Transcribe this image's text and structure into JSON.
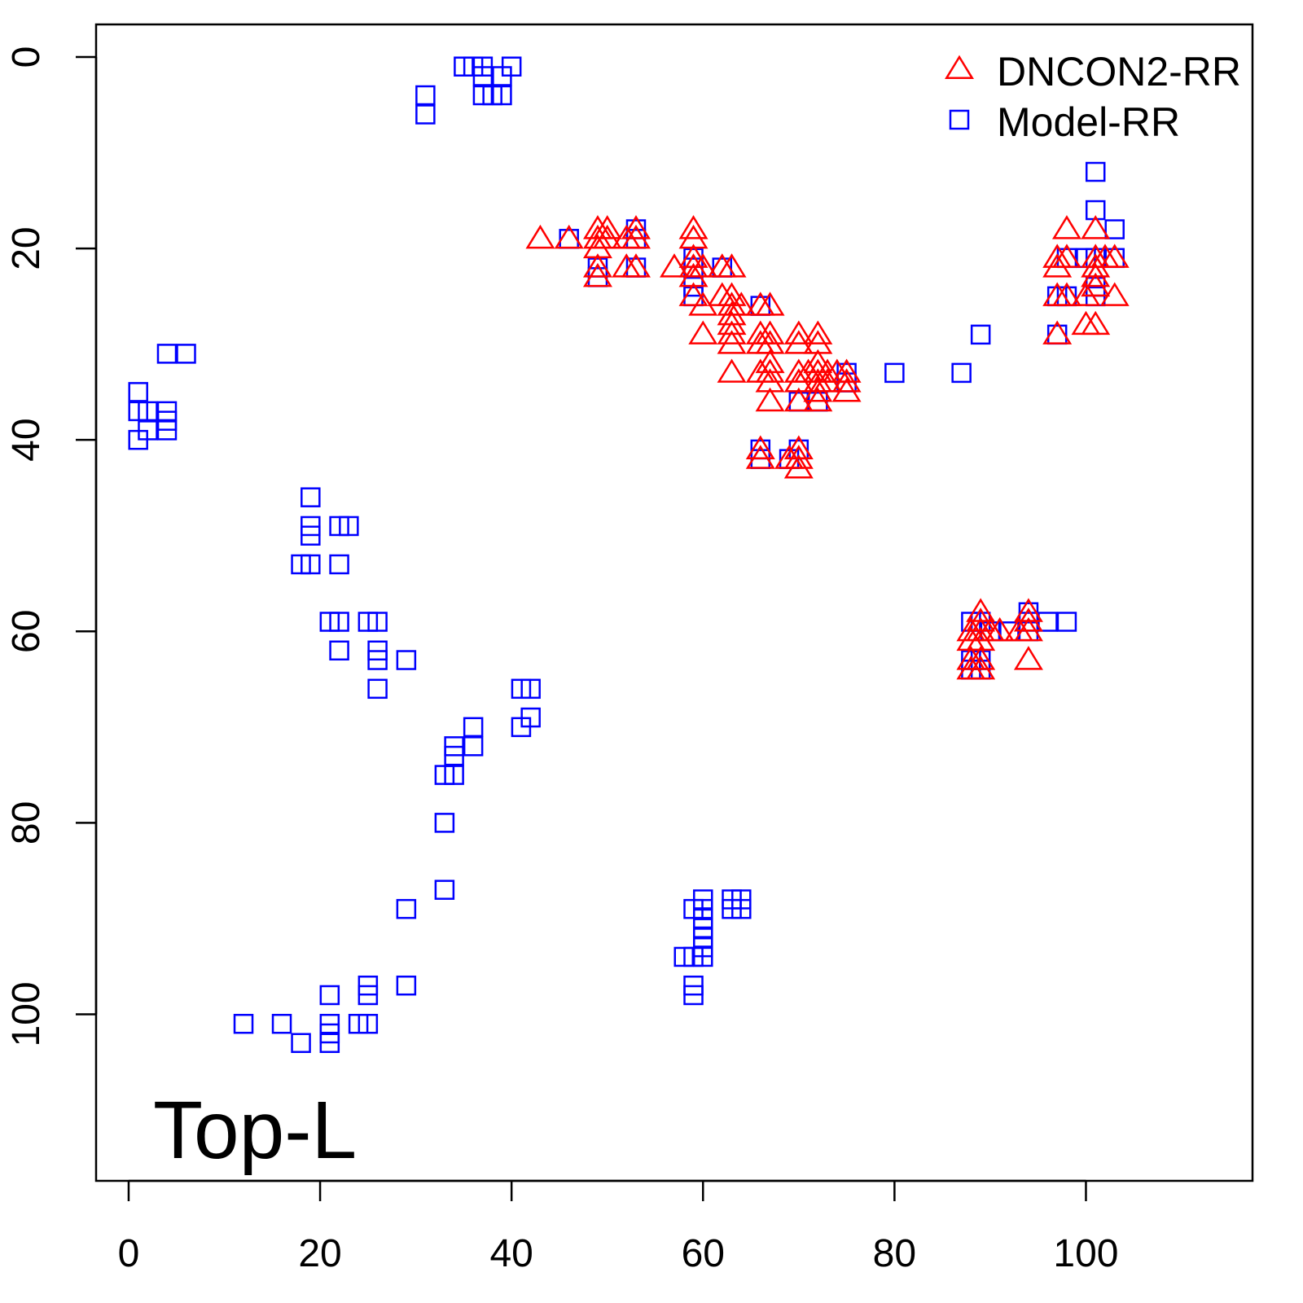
{
  "chart_data": {
    "type": "scatter",
    "title": "",
    "xlabel": "",
    "ylabel": "",
    "xlim": [
      -3.4,
      117.4
    ],
    "ylim": [
      -3.4,
      117.4
    ],
    "y_inverted": true,
    "grid": false,
    "x_ticks": [
      0,
      20,
      40,
      60,
      80,
      100
    ],
    "y_ticks": [
      0,
      20,
      40,
      60,
      80,
      100
    ],
    "annotation": "Top-L",
    "legend_position": "top-right",
    "series": [
      {
        "name": "DNCON2-RR",
        "marker": "triangle",
        "color": "#ff0000",
        "points": [
          [
            43,
            19
          ],
          [
            46,
            19
          ],
          [
            49,
            18
          ],
          [
            49,
            19
          ],
          [
            49,
            20
          ],
          [
            50,
            18
          ],
          [
            49,
            22
          ],
          [
            49,
            23
          ],
          [
            50,
            19
          ],
          [
            52,
            19
          ],
          [
            53,
            18
          ],
          [
            53,
            19
          ],
          [
            52,
            22
          ],
          [
            53,
            22
          ],
          [
            57,
            22
          ],
          [
            59,
            18
          ],
          [
            59,
            19
          ],
          [
            59,
            21
          ],
          [
            59,
            22
          ],
          [
            59,
            23
          ],
          [
            60,
            22
          ],
          [
            59,
            25
          ],
          [
            60,
            26
          ],
          [
            60,
            29
          ],
          [
            62,
            22
          ],
          [
            63,
            22
          ],
          [
            62,
            25
          ],
          [
            63,
            25
          ],
          [
            63,
            26
          ],
          [
            63,
            27
          ],
          [
            63,
            28
          ],
          [
            63,
            29
          ],
          [
            63,
            30
          ],
          [
            63,
            33
          ],
          [
            64,
            26
          ],
          [
            66,
            26
          ],
          [
            67,
            26
          ],
          [
            66,
            29
          ],
          [
            67,
            29
          ],
          [
            66,
            30
          ],
          [
            67,
            30
          ],
          [
            66,
            33
          ],
          [
            67,
            32
          ],
          [
            67,
            33
          ],
          [
            67,
            34
          ],
          [
            67,
            36
          ],
          [
            66,
            41
          ],
          [
            66,
            42
          ],
          [
            70,
            29
          ],
          [
            70,
            30
          ],
          [
            72,
            29
          ],
          [
            72,
            30
          ],
          [
            70,
            33
          ],
          [
            70,
            34
          ],
          [
            71,
            33
          ],
          [
            72,
            32
          ],
          [
            72,
            33
          ],
          [
            72,
            34
          ],
          [
            72,
            35
          ],
          [
            72,
            36
          ],
          [
            73,
            33
          ],
          [
            73,
            34
          ],
          [
            74,
            33
          ],
          [
            75,
            33
          ],
          [
            75,
            34
          ],
          [
            75,
            35
          ],
          [
            70,
            36
          ],
          [
            69,
            42
          ],
          [
            70,
            41
          ],
          [
            70,
            42
          ],
          [
            70,
            43
          ],
          [
            97,
            21
          ],
          [
            97,
            22
          ],
          [
            98,
            18
          ],
          [
            98,
            21
          ],
          [
            97,
            25
          ],
          [
            98,
            25
          ],
          [
            97,
            29
          ],
          [
            100,
            25
          ],
          [
            101,
            18
          ],
          [
            101,
            21
          ],
          [
            101,
            22
          ],
          [
            101,
            23
          ],
          [
            102,
            21
          ],
          [
            103,
            21
          ],
          [
            103,
            25
          ],
          [
            100,
            28
          ],
          [
            101,
            28
          ],
          [
            101,
            24
          ],
          [
            88,
            60
          ],
          [
            88,
            61
          ],
          [
            88,
            63
          ],
          [
            88,
            64
          ],
          [
            89,
            58
          ],
          [
            89,
            59
          ],
          [
            89,
            60
          ],
          [
            89,
            61
          ],
          [
            89,
            63
          ],
          [
            89,
            64
          ],
          [
            90,
            60
          ],
          [
            91,
            60
          ],
          [
            93,
            60
          ],
          [
            94,
            58
          ],
          [
            94,
            59
          ],
          [
            94,
            60
          ],
          [
            94,
            63
          ]
        ]
      },
      {
        "name": "Model-RR",
        "marker": "square",
        "color": "#0000ff",
        "points": [
          [
            35,
            1
          ],
          [
            36,
            1
          ],
          [
            37,
            1
          ],
          [
            40,
            1
          ],
          [
            37,
            2
          ],
          [
            39,
            2
          ],
          [
            37,
            4
          ],
          [
            38,
            4
          ],
          [
            39,
            4
          ],
          [
            31,
            4
          ],
          [
            31,
            6
          ],
          [
            1,
            35
          ],
          [
            1,
            37
          ],
          [
            1,
            40
          ],
          [
            2,
            37
          ],
          [
            2,
            39
          ],
          [
            4,
            31
          ],
          [
            6,
            31
          ],
          [
            4,
            37
          ],
          [
            4,
            38
          ],
          [
            4,
            39
          ],
          [
            19,
            46
          ],
          [
            19,
            49
          ],
          [
            19,
            50
          ],
          [
            18,
            53
          ],
          [
            19,
            53
          ],
          [
            22,
            49
          ],
          [
            23,
            49
          ],
          [
            22,
            53
          ],
          [
            21,
            59
          ],
          [
            22,
            59
          ],
          [
            22,
            62
          ],
          [
            25,
            59
          ],
          [
            26,
            59
          ],
          [
            26,
            62
          ],
          [
            26,
            63
          ],
          [
            26,
            66
          ],
          [
            29,
            63
          ],
          [
            33,
            80
          ],
          [
            33,
            87
          ],
          [
            29,
            89
          ],
          [
            29,
            97
          ],
          [
            21,
            98
          ],
          [
            25,
            97
          ],
          [
            25,
            98
          ],
          [
            24,
            101
          ],
          [
            25,
            101
          ],
          [
            21,
            101
          ],
          [
            21,
            102
          ],
          [
            21,
            103
          ],
          [
            12,
            101
          ],
          [
            16,
            101
          ],
          [
            18,
            103
          ],
          [
            33,
            75
          ],
          [
            34,
            75
          ],
          [
            34,
            72
          ],
          [
            34,
            73
          ],
          [
            36,
            70
          ],
          [
            36,
            72
          ],
          [
            41,
            66
          ],
          [
            42,
            66
          ],
          [
            41,
            70
          ],
          [
            42,
            69
          ],
          [
            59,
            89
          ],
          [
            60,
            88
          ],
          [
            60,
            89
          ],
          [
            60,
            90
          ],
          [
            60,
            91
          ],
          [
            60,
            92
          ],
          [
            60,
            93
          ],
          [
            60,
            94
          ],
          [
            58,
            94
          ],
          [
            59,
            94
          ],
          [
            59,
            97
          ],
          [
            59,
            98
          ],
          [
            63,
            88
          ],
          [
            64,
            88
          ],
          [
            63,
            89
          ],
          [
            64,
            89
          ],
          [
            101,
            12
          ],
          [
            101,
            16
          ],
          [
            103,
            18
          ],
          [
            80,
            33
          ],
          [
            87,
            33
          ],
          [
            89,
            29
          ],
          [
            97,
            29
          ],
          [
            96,
            59
          ],
          [
            98,
            59
          ],
          [
            94,
            58
          ],
          [
            46,
            19
          ],
          [
            49,
            22
          ],
          [
            49,
            23
          ],
          [
            53,
            18
          ],
          [
            53,
            19
          ],
          [
            53,
            22
          ],
          [
            59,
            21
          ],
          [
            59,
            22
          ],
          [
            59,
            24
          ],
          [
            59,
            25
          ],
          [
            62,
            22
          ],
          [
            66,
            26
          ],
          [
            66,
            41
          ],
          [
            66,
            42
          ],
          [
            70,
            41
          ],
          [
            69,
            42
          ],
          [
            70,
            36
          ],
          [
            72,
            36
          ],
          [
            75,
            33
          ],
          [
            75,
            34
          ],
          [
            100,
            21
          ],
          [
            101,
            21
          ],
          [
            103,
            21
          ],
          [
            101,
            24
          ],
          [
            97,
            25
          ],
          [
            98,
            25
          ],
          [
            101,
            25
          ],
          [
            98,
            21
          ],
          [
            88,
            59
          ],
          [
            88,
            63
          ],
          [
            88,
            64
          ],
          [
            89,
            63
          ],
          [
            89,
            64
          ],
          [
            94,
            59
          ],
          [
            94,
            60
          ],
          [
            89,
            59
          ],
          [
            90,
            60
          ],
          [
            92,
            60
          ]
        ]
      }
    ]
  }
}
